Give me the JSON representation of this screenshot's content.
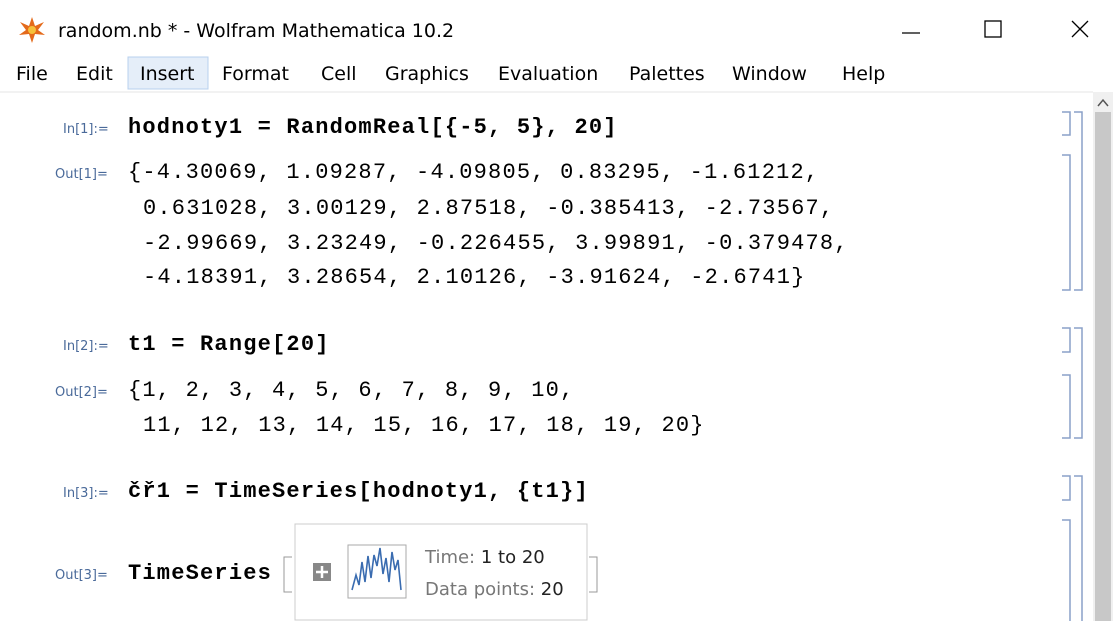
{
  "title_bar": {
    "title": "random.nb * - Wolfram Mathematica 10.2"
  },
  "menu": [
    "File",
    "Edit",
    "Insert",
    "Format",
    "Cell",
    "Graphics",
    "Evaluation",
    "Palettes",
    "Window",
    "Help"
  ],
  "cells": [
    {
      "label": "In[1]:=",
      "lines": [
        "hodnoty1 = RandomReal[{-5, 5}, 20]"
      ]
    },
    {
      "label": "Out[1]=",
      "lines": [
        "{-4.30069, 1.09287, -4.09805, 0.83295, -1.61212,",
        "0.631028, 3.00129, 2.87518, -0.385413, -2.73567,",
        "-2.99669, 3.23249, -0.226455, 3.99891, -0.379478,",
        "-4.18391, 3.28654, 2.10126, -3.91624, -2.6741}"
      ]
    },
    {
      "label": "In[2]:=",
      "lines": [
        "t1 = Range[20]"
      ]
    },
    {
      "label": "Out[2]=",
      "lines": [
        "{1, 2, 3, 4, 5, 6, 7, 8, 9, 10,",
        "11, 12, 13, 14, 15, 16, 17, 18, 19, 20}"
      ]
    },
    {
      "label": "In[3]:=",
      "lines": [
        "čř1 = TimeSeries[hodnoty1, {t1}]"
      ]
    },
    {
      "label": "Out[3]=",
      "lines": [
        "TimeSeries"
      ]
    }
  ],
  "summary": {
    "time_label": "Time:",
    "time_value": "1 to 20",
    "points_label": "Data points:",
    "points_value": "20"
  }
}
